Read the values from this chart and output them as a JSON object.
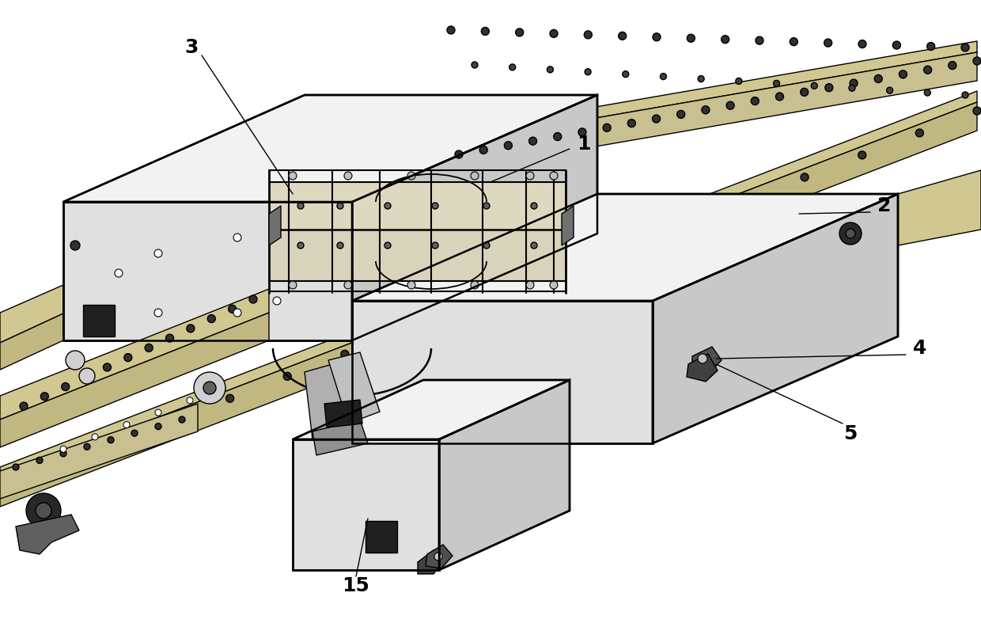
{
  "bg_color": "#ffffff",
  "line_color": "#000000",
  "fig_width": 12.4,
  "fig_height": 7.92,
  "lw_main": 1.8,
  "lw_thin": 1.0,
  "lw_thick": 2.5,
  "face_top": "#f2f2f2",
  "face_front": "#e0e0e0",
  "face_right": "#c8c8c8",
  "face_dark": "#b0b0b0",
  "track_face": "#d0c8a0",
  "track_edge": "#000000",
  "mech_face": "#e8e4d0",
  "dark_detail": "#404040",
  "gray_detail": "#888888"
}
